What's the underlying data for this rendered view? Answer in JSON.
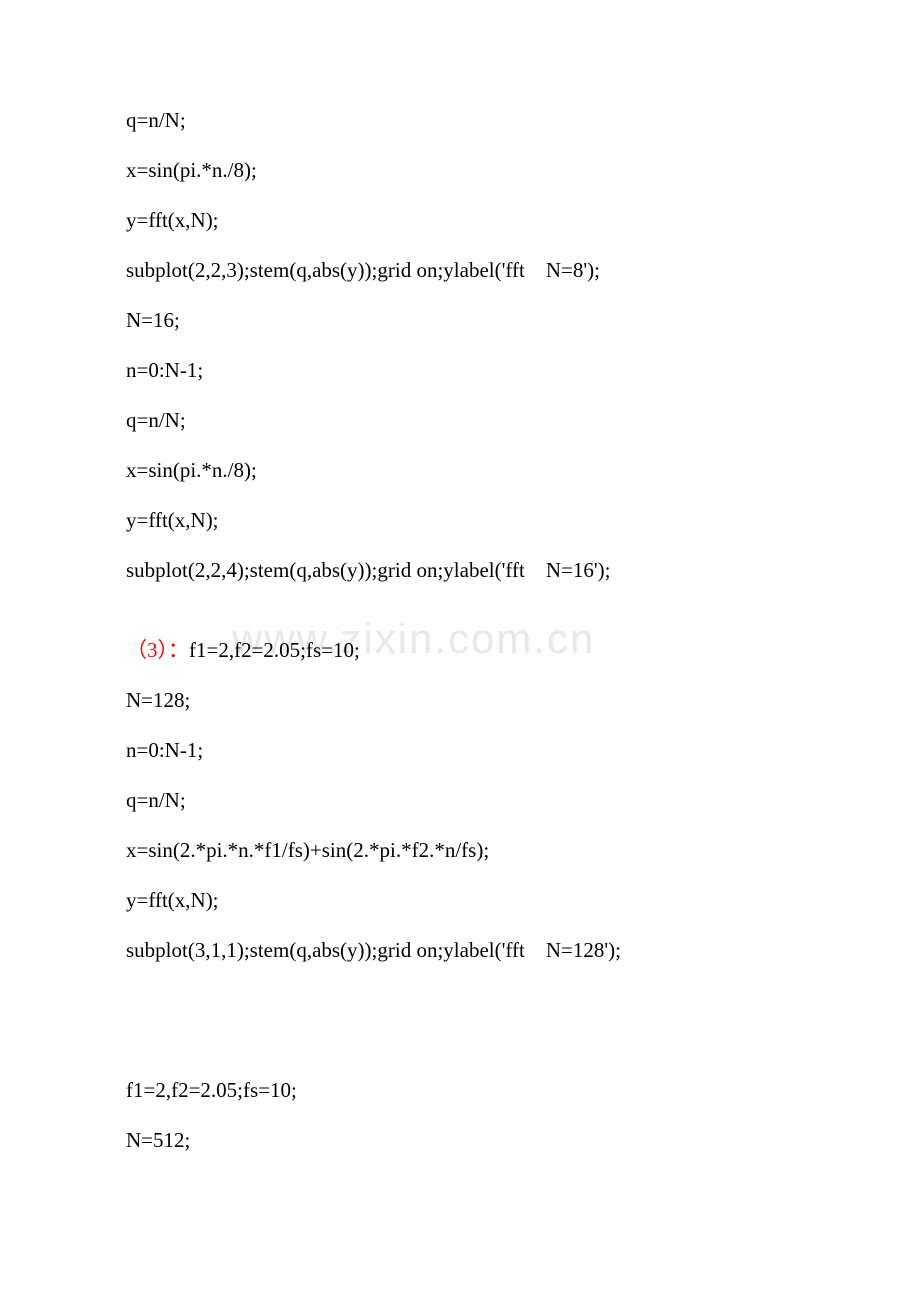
{
  "watermark": "www.zixin.com.cn",
  "lines": [
    {
      "text": "q=n/N;",
      "type": "code"
    },
    {
      "text": "x=sin(pi.*n./8);",
      "type": "code"
    },
    {
      "text": "y=fft(x,N);",
      "type": "code"
    },
    {
      "text": "subplot(2,2,3);stem(q,abs(y));grid on;ylabel('fft    N=8');",
      "type": "code"
    },
    {
      "text": "N=16;",
      "type": "code"
    },
    {
      "text": "n=0:N-1;",
      "type": "code"
    },
    {
      "text": "q=n/N;",
      "type": "code"
    },
    {
      "text": "x=sin(pi.*n./8);",
      "type": "code"
    },
    {
      "text": "y=fft(x,N);",
      "type": "code"
    },
    {
      "text": "subplot(2,2,4);stem(q,abs(y));grid on;ylabel('fft    N=16');",
      "type": "code"
    },
    {
      "type": "gap"
    },
    {
      "prefix": "（3）：",
      "text": "f1=2,f2=2.05;fs=10;",
      "type": "code-with-red"
    },
    {
      "text": "N=128;",
      "type": "code"
    },
    {
      "text": "n=0:N-1;",
      "type": "code"
    },
    {
      "text": "q=n/N;",
      "type": "code"
    },
    {
      "text": "x=sin(2.*pi.*n.*f1/fs)+sin(2.*pi.*f2.*n/fs);",
      "type": "code"
    },
    {
      "text": "y=fft(x,N);",
      "type": "code"
    },
    {
      "text": "subplot(3,1,1);stem(q,abs(y));grid on;ylabel('fft    N=128');",
      "type": "code"
    },
    {
      "type": "gap-large"
    },
    {
      "text": "f1=2,f2=2.05;fs=10;",
      "type": "code"
    },
    {
      "text": "N=512;",
      "type": "code"
    }
  ],
  "colors": {
    "text": "#000000",
    "red": "#ff0000",
    "background": "#ffffff",
    "watermark": "#e8e8e8"
  },
  "font_size": 21
}
